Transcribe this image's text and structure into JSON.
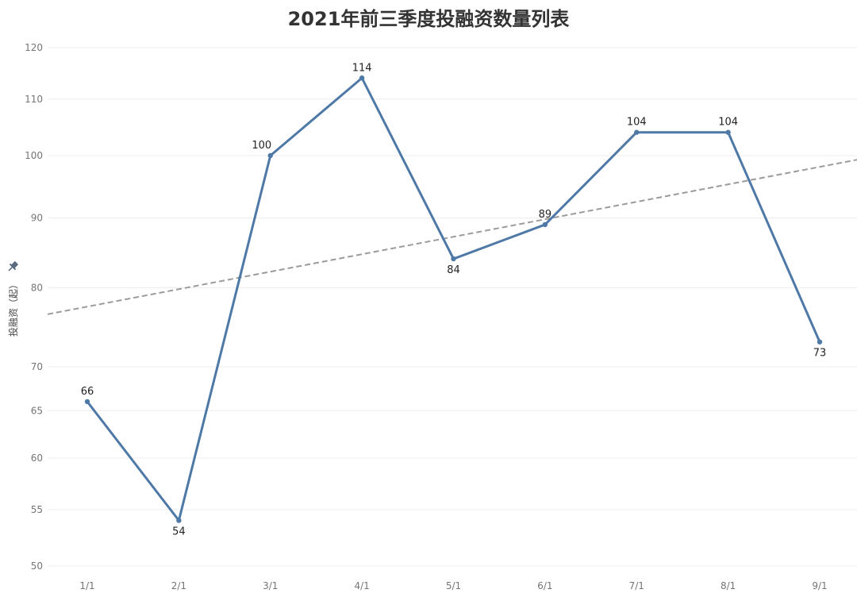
{
  "chart_data": {
    "type": "line",
    "title": "2021年前三季度投融资数量列表",
    "ylabel": "投融资（起）",
    "xlabel": "",
    "categories": [
      "1/1",
      "2/1",
      "3/1",
      "4/1",
      "5/1",
      "6/1",
      "7/1",
      "8/1",
      "9/1"
    ],
    "series": [
      {
        "values": [
          66,
          54,
          100,
          114,
          84,
          89,
          104,
          104,
          73
        ]
      }
    ],
    "trendline": {
      "start": 76.5,
      "end": 99.3
    },
    "y_ticks": [
      50,
      55,
      60,
      65,
      70,
      80,
      90,
      100,
      110,
      120
    ],
    "ylim": [
      50,
      120
    ],
    "y_scale": "log",
    "grid": true,
    "colors": {
      "line": "#4e79a7",
      "trend": "#9b9b9b",
      "grid": "#ececec",
      "tick_text": "#757575",
      "title": "#333333",
      "label": "#222222"
    },
    "icons": {
      "axis_pin": "pin-icon"
    }
  }
}
